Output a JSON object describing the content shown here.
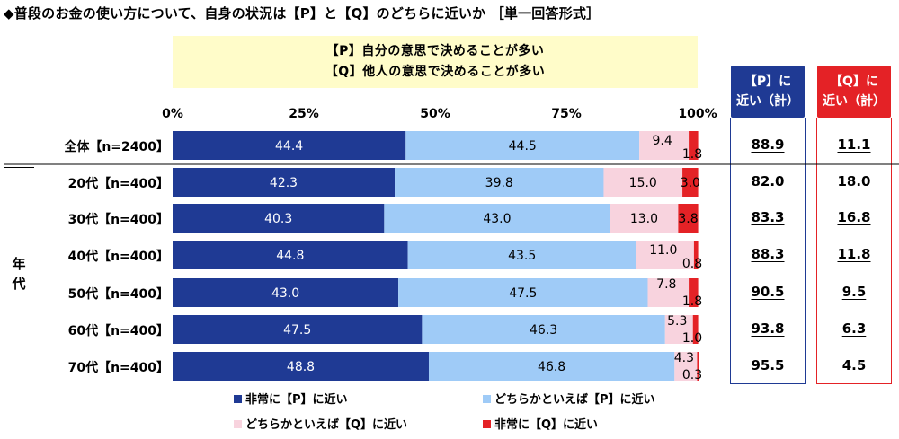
{
  "title": "◆普段のお金の使い方について、自身の状況は【P】と【Q】のどちらに近いか ［単一回答形式］",
  "legend_box": {
    "line1": "【P】自分の意思で決めることが多い",
    "line2": "【Q】他人の意思で決めることが多い"
  },
  "summary_headers": {
    "p_line1": "【P】に",
    "p_line2": "近い（計）",
    "q_line1": "【Q】に",
    "q_line2": "近い（計）"
  },
  "group_label": "年代",
  "colors": {
    "very_p": "#1f3a94",
    "somewhat_p": "#9fcbf7",
    "somewhat_q": "#f8d3de",
    "very_q": "#e42226",
    "legend_bg": "#fffcc9"
  },
  "chart_data": {
    "type": "bar",
    "orientation": "horizontal",
    "stacked": true,
    "percent": true,
    "title": "◆普段のお金の使い方について、自身の状況は【P】と【Q】のどちらに近いか ［単一回答形式］",
    "xlim": [
      0,
      100
    ],
    "x_ticks": [
      "0%",
      "25%",
      "50%",
      "75%",
      "100%"
    ],
    "categories": [
      "全体【n=2400】",
      "20代【n=400】",
      "30代【n=400】",
      "40代【n=400】",
      "50代【n=400】",
      "60代【n=400】",
      "70代【n=400】"
    ],
    "series": [
      {
        "name": "非常に【P】に近い",
        "values": [
          44.4,
          42.3,
          40.3,
          44.8,
          43.0,
          47.5,
          48.8
        ],
        "labels": [
          "44.4",
          "42.3",
          "40.3",
          "44.8",
          "43.0",
          "47.5",
          "48.8"
        ]
      },
      {
        "name": "どちらかといえば【P】に近い",
        "values": [
          44.5,
          39.8,
          43.0,
          43.5,
          47.5,
          46.3,
          46.8
        ],
        "labels": [
          "44.5",
          "39.8",
          "43.0",
          "43.5",
          "47.5",
          "46.3",
          "46.8"
        ]
      },
      {
        "name": "どちらかといえば【Q】に近い",
        "values": [
          9.4,
          15.0,
          13.0,
          11.0,
          7.8,
          5.3,
          4.3
        ],
        "labels": [
          "9.4",
          "15.0",
          "13.0",
          "11.0",
          "7.8",
          "5.3",
          "4.3"
        ]
      },
      {
        "name": "非常に【Q】に近い",
        "values": [
          1.8,
          3.0,
          3.8,
          0.8,
          1.8,
          1.0,
          0.3
        ],
        "labels": [
          "1.8",
          "3.0",
          "3.8",
          "0.8",
          "1.8",
          "1.0",
          "0.3"
        ]
      }
    ],
    "p_total": [
      "88.9",
      "82.0",
      "83.3",
      "88.3",
      "90.5",
      "93.8",
      "95.5"
    ],
    "q_total": [
      "11.1",
      "18.0",
      "16.8",
      "11.8",
      "9.5",
      "6.3",
      "4.5"
    ],
    "legend_position": "bottom"
  }
}
